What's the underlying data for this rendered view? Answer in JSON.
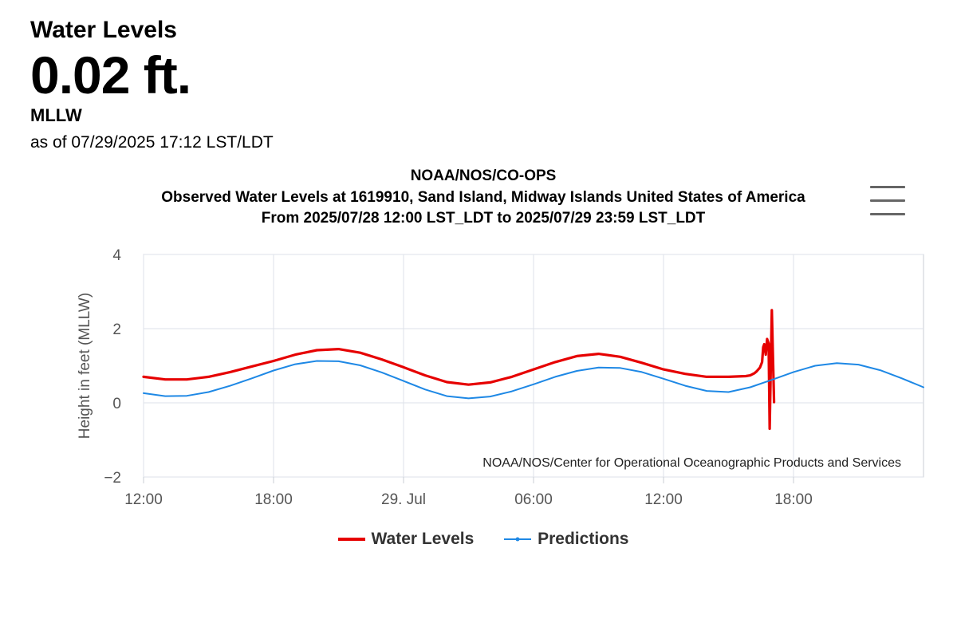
{
  "header": {
    "title": "Water Levels",
    "value": "0.02 ft.",
    "datum": "MLLW",
    "as_of": "as of 07/29/2025 17:12 LST/LDT"
  },
  "menu": {
    "icon": "hamburger-menu-icon"
  },
  "colors": {
    "water_levels": "#e60000",
    "predictions": "#1e88e5",
    "grid": "#dde2e8"
  },
  "chart_data": {
    "type": "line",
    "title": "NOAA/NOS/CO-OPS",
    "subtitle_line1": "Observed Water Levels at 1619910, Sand Island, Midway Islands United States of America",
    "subtitle_line2": "From 2025/07/28 12:00 LST_LDT to 2025/07/29 23:59 LST_LDT",
    "xlabel": "",
    "ylabel": "Height in feet (MLLW)",
    "xlim_hours": [
      0,
      36
    ],
    "ylim": [
      -2,
      4
    ],
    "yticks": [
      {
        "v": -2,
        "label": "−2"
      },
      {
        "v": 0,
        "label": "0"
      },
      {
        "v": 2,
        "label": "2"
      },
      {
        "v": 4,
        "label": "4"
      }
    ],
    "xticks": [
      {
        "h": 0,
        "label": "12:00"
      },
      {
        "h": 6,
        "label": "18:00"
      },
      {
        "h": 12,
        "label": "29. Jul"
      },
      {
        "h": 18,
        "label": "06:00"
      },
      {
        "h": 24,
        "label": "12:00"
      },
      {
        "h": 30,
        "label": "18:00"
      }
    ],
    "credits": "NOAA/NOS/Center for Operational Oceanographic Products and Services",
    "series": [
      {
        "name": "Water Levels",
        "x_hours": [
          0,
          1,
          2,
          3,
          4,
          5,
          6,
          7,
          8,
          9,
          10,
          11,
          12,
          13,
          14,
          15,
          16,
          17,
          18,
          19,
          20,
          21,
          22,
          23,
          24,
          25,
          26,
          27,
          27.8,
          28.0,
          28.2,
          28.3,
          28.45,
          28.55,
          28.6,
          28.65,
          28.72,
          28.78,
          28.85,
          28.9,
          29.0,
          29.1
        ],
        "values": [
          0.7,
          0.63,
          0.63,
          0.7,
          0.83,
          0.98,
          1.13,
          1.3,
          1.42,
          1.45,
          1.35,
          1.17,
          0.96,
          0.74,
          0.56,
          0.49,
          0.55,
          0.7,
          0.9,
          1.1,
          1.26,
          1.32,
          1.24,
          1.08,
          0.9,
          0.78,
          0.7,
          0.7,
          0.72,
          0.74,
          0.8,
          0.85,
          0.95,
          1.1,
          1.5,
          1.58,
          1.3,
          1.72,
          1.6,
          -0.7,
          2.5,
          0.02
        ]
      },
      {
        "name": "Predictions",
        "x_hours": [
          0,
          1,
          2,
          3,
          4,
          5,
          6,
          7,
          8,
          9,
          10,
          11,
          12,
          13,
          14,
          15,
          16,
          17,
          18,
          19,
          20,
          21,
          22,
          23,
          24,
          25,
          26,
          27,
          28,
          29,
          30,
          31,
          32,
          33,
          34,
          35,
          36
        ],
        "values": [
          0.26,
          0.18,
          0.19,
          0.29,
          0.46,
          0.66,
          0.87,
          1.04,
          1.13,
          1.12,
          1.01,
          0.82,
          0.59,
          0.36,
          0.18,
          0.12,
          0.17,
          0.31,
          0.5,
          0.7,
          0.86,
          0.95,
          0.94,
          0.83,
          0.65,
          0.46,
          0.32,
          0.29,
          0.42,
          0.62,
          0.83,
          1.0,
          1.07,
          1.03,
          0.88,
          0.66,
          0.42
        ]
      }
    ]
  }
}
